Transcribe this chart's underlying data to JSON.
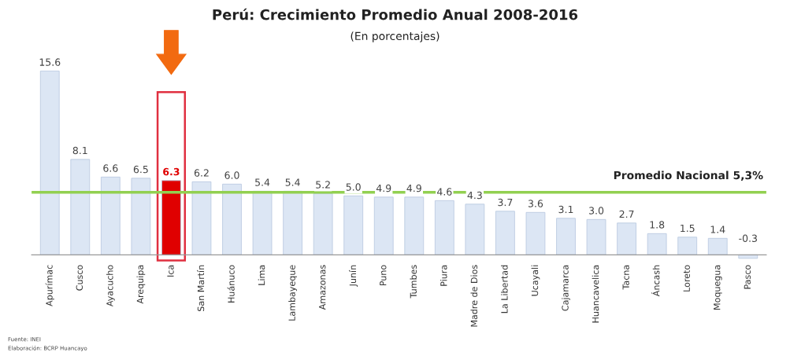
{
  "chart_data": {
    "type": "bar",
    "title": "Perú: Crecimiento Promedio Anual 2008-2016",
    "subtitle": "(En porcentajes)",
    "categories": [
      "Apurímac",
      "Cusco",
      "Ayacucho",
      "Arequipa",
      "Ica",
      "San Martín",
      "Huánuco",
      "Lima",
      "Lambayeque",
      "Amazonas",
      "Junín",
      "Puno",
      "Tumbes",
      "Piura",
      "Madre de Dios",
      "La Libertad",
      "Ucayali",
      "Cajamarca",
      "Huancavelica",
      "Tacna",
      "Áncash",
      "Loreto",
      "Moquegua",
      "Pasco"
    ],
    "values": [
      15.6,
      8.1,
      6.6,
      6.5,
      6.3,
      6.2,
      6.0,
      5.4,
      5.4,
      5.2,
      5.0,
      4.9,
      4.9,
      4.6,
      4.3,
      3.7,
      3.6,
      3.1,
      3.0,
      2.7,
      1.8,
      1.5,
      1.4,
      -0.3
    ],
    "colors": [
      "#dce6f4",
      "#dce6f4",
      "#dce6f4",
      "#dce6f4",
      "#e00000",
      "#dce6f4",
      "#dce6f4",
      "#dce6f4",
      "#dce6f4",
      "#dce6f4",
      "#dce6f4",
      "#dce6f4",
      "#dce6f4",
      "#dce6f4",
      "#dce6f4",
      "#dce6f4",
      "#dce6f4",
      "#dce6f4",
      "#dce6f4",
      "#dce6f4",
      "#dce6f4",
      "#dce6f4",
      "#dce6f4",
      "#dce6f4"
    ],
    "value_labels": [
      "15.6",
      "8.1",
      "6.6",
      "6.5",
      "6.3",
      "6.2",
      "6.0",
      "5.4",
      "5.4",
      "5.2",
      "5.0",
      "4.9",
      "4.9",
      "4.6",
      "4.3",
      "3.7",
      "3.6",
      "3.1",
      "3.0",
      "2.7",
      "1.8",
      "1.5",
      "1.4",
      "-0.3"
    ],
    "ref_lines": [
      {
        "axis": "y",
        "value": 5.3,
        "label": "Promedio Nacional 5,3%",
        "color": "#92d050"
      }
    ],
    "annotations": [
      "Fuente: INEI",
      "Elaboración: BCRP Huancayo"
    ],
    "grid": false
  }
}
